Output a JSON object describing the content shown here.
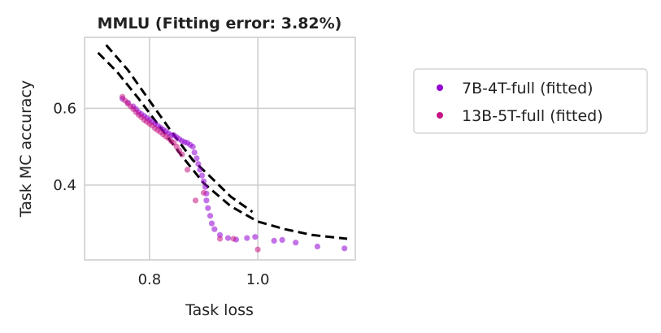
{
  "chart_data": {
    "type": "scatter",
    "title": "MMLU (Fitting error: 3.82%)",
    "xlabel": "Task loss",
    "ylabel": "Task MC accuracy",
    "xlim": [
      0.68,
      1.18
    ],
    "ylim": [
      0.205,
      0.785
    ],
    "xticks": [
      0.8,
      1.0
    ],
    "xtick_labels": [
      "0.8",
      "1.0"
    ],
    "yticks": [
      0.4,
      0.6
    ],
    "ytick_labels": [
      "0.4",
      "0.6"
    ],
    "grid": true,
    "legend_position": "right, outside plot",
    "series": [
      {
        "name": "7B-4T-full (fitted)",
        "color": "#9400d3",
        "points": [
          [
            0.75,
            0.625
          ],
          [
            0.76,
            0.615
          ],
          [
            0.77,
            0.605
          ],
          [
            0.775,
            0.598
          ],
          [
            0.78,
            0.59
          ],
          [
            0.785,
            0.585
          ],
          [
            0.79,
            0.58
          ],
          [
            0.795,
            0.575
          ],
          [
            0.8,
            0.57
          ],
          [
            0.805,
            0.565
          ],
          [
            0.81,
            0.56
          ],
          [
            0.815,
            0.555
          ],
          [
            0.82,
            0.55
          ],
          [
            0.825,
            0.545
          ],
          [
            0.83,
            0.54
          ],
          [
            0.835,
            0.535
          ],
          [
            0.84,
            0.53
          ],
          [
            0.845,
            0.53
          ],
          [
            0.85,
            0.525
          ],
          [
            0.855,
            0.52
          ],
          [
            0.86,
            0.515
          ],
          [
            0.865,
            0.512
          ],
          [
            0.87,
            0.51
          ],
          [
            0.875,
            0.505
          ],
          [
            0.88,
            0.5
          ],
          [
            0.883,
            0.485
          ],
          [
            0.887,
            0.47
          ],
          [
            0.89,
            0.455
          ],
          [
            0.893,
            0.44
          ],
          [
            0.897,
            0.425
          ],
          [
            0.9,
            0.41
          ],
          [
            0.903,
            0.395
          ],
          [
            0.905,
            0.378
          ],
          [
            0.905,
            0.36
          ],
          [
            0.908,
            0.34
          ],
          [
            0.912,
            0.32
          ],
          [
            0.915,
            0.3
          ],
          [
            0.92,
            0.285
          ],
          [
            0.93,
            0.27
          ],
          [
            0.945,
            0.262
          ],
          [
            0.96,
            0.258
          ],
          [
            0.98,
            0.262
          ],
          [
            0.995,
            0.265
          ],
          [
            1.03,
            0.255
          ],
          [
            1.045,
            0.257
          ],
          [
            1.07,
            0.25
          ],
          [
            1.11,
            0.24
          ],
          [
            1.16,
            0.235
          ]
        ]
      },
      {
        "name": "13B-5T-full (fitted)",
        "color": "#c71585",
        "points": [
          [
            0.75,
            0.63
          ],
          [
            0.755,
            0.62
          ],
          [
            0.76,
            0.612
          ],
          [
            0.765,
            0.605
          ],
          [
            0.77,
            0.598
          ],
          [
            0.775,
            0.59
          ],
          [
            0.78,
            0.583
          ],
          [
            0.785,
            0.577
          ],
          [
            0.79,
            0.57
          ],
          [
            0.795,
            0.565
          ],
          [
            0.8,
            0.56
          ],
          [
            0.805,
            0.555
          ],
          [
            0.81,
            0.548
          ],
          [
            0.815,
            0.543
          ],
          [
            0.82,
            0.538
          ],
          [
            0.825,
            0.532
          ],
          [
            0.83,
            0.527
          ],
          [
            0.835,
            0.522
          ],
          [
            0.84,
            0.515
          ],
          [
            0.845,
            0.51
          ],
          [
            0.85,
            0.5
          ],
          [
            0.855,
            0.49
          ],
          [
            0.86,
            0.48
          ],
          [
            0.87,
            0.44
          ],
          [
            0.885,
            0.36
          ],
          [
            0.9,
            0.38
          ],
          [
            0.93,
            0.26
          ],
          [
            0.955,
            0.26
          ],
          [
            1.0,
            0.232
          ]
        ]
      }
    ],
    "fit_curves": [
      {
        "style": "dashed",
        "color": "#000000",
        "points": [
          [
            0.705,
            0.745
          ],
          [
            0.74,
            0.695
          ],
          [
            0.78,
            0.625
          ],
          [
            0.82,
            0.55
          ],
          [
            0.86,
            0.475
          ],
          [
            0.9,
            0.405
          ],
          [
            0.95,
            0.345
          ],
          [
            1.0,
            0.305
          ],
          [
            1.05,
            0.285
          ],
          [
            1.1,
            0.27
          ],
          [
            1.165,
            0.26
          ]
        ]
      },
      {
        "style": "dashed",
        "color": "#000000",
        "points": [
          [
            0.72,
            0.765
          ],
          [
            0.76,
            0.7
          ],
          [
            0.8,
            0.62
          ],
          [
            0.84,
            0.54
          ],
          [
            0.88,
            0.465
          ],
          [
            0.91,
            0.425
          ],
          [
            0.95,
            0.37
          ],
          [
            0.99,
            0.33
          ]
        ]
      }
    ]
  }
}
